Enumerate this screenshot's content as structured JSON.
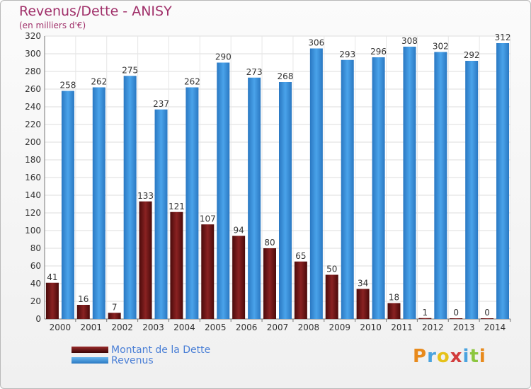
{
  "title": "Revenus/Dette - ANISY",
  "subtitle": "(en milliers d'€)",
  "logo": {
    "text": "Proxiti",
    "colors": [
      "#e88a1c",
      "#4aa3df",
      "#e6c21a",
      "#d23c3c",
      "#4aa3df",
      "#8cc63f",
      "#e88a1c"
    ]
  },
  "chart_data": {
    "type": "bar",
    "categories": [
      "2000",
      "2001",
      "2002",
      "2003",
      "2004",
      "2005",
      "2006",
      "2007",
      "2008",
      "2009",
      "2010",
      "2011",
      "2012",
      "2013",
      "2014"
    ],
    "series": [
      {
        "name": "Montant de la Dette",
        "color": "#7a1818",
        "values": [
          41,
          16,
          7,
          133,
          121,
          107,
          94,
          80,
          65,
          50,
          34,
          18,
          1,
          0,
          0
        ]
      },
      {
        "name": "Revenus",
        "color": "#3d96de",
        "values": [
          258,
          262,
          275,
          237,
          262,
          290,
          273,
          268,
          306,
          293,
          296,
          308,
          302,
          292,
          312
        ]
      }
    ],
    "yticks": [
      0,
      20,
      40,
      60,
      80,
      100,
      120,
      140,
      160,
      180,
      200,
      220,
      240,
      260,
      280,
      300,
      320
    ],
    "ylim": [
      0,
      320
    ],
    "grid": true,
    "legend_position": "bottom-left"
  }
}
